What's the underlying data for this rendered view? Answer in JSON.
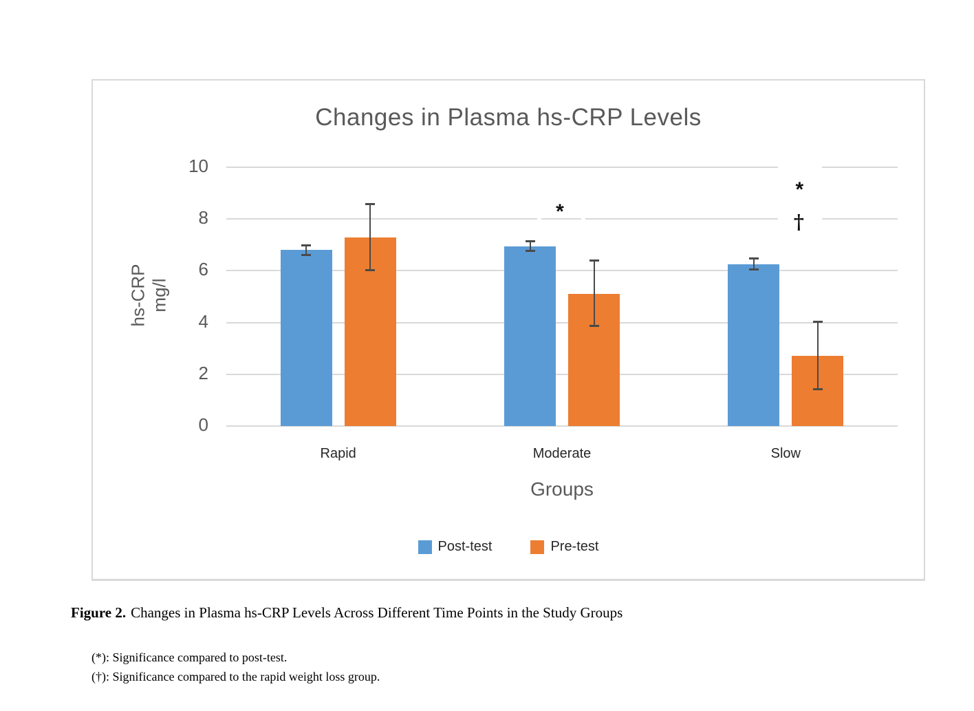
{
  "caption": {
    "label": "Figure 2.",
    "text": "Changes in Plasma hs-CRP Levels Across Different Time Points in the Study Groups"
  },
  "footnotes": [
    "(*): Significance compared to post-test.",
    "(†): Significance compared to the rapid weight loss group."
  ],
  "chart_data": {
    "type": "bar",
    "title": "Changes in Plasma hs-CRP Levels",
    "categories": [
      "Rapid",
      "Moderate",
      "Slow"
    ],
    "series": [
      {
        "name": "Post-test",
        "color": "#5B9BD5",
        "values": [
          6.8,
          6.95,
          6.25
        ],
        "error_low": [
          6.6,
          6.75,
          6.05
        ],
        "error_high": [
          7.0,
          7.15,
          6.5
        ]
      },
      {
        "name": "Pre-test",
        "color": "#ED7D31",
        "values": [
          7.3,
          5.1,
          2.7
        ],
        "error_low": [
          6.0,
          3.85,
          1.4
        ],
        "error_high": [
          8.6,
          6.4,
          4.05
        ]
      }
    ],
    "xlabel": "Groups",
    "ylabel": "hs-CRP mg/l",
    "ylabel_lines": [
      "hs-CRP",
      "mg/l"
    ],
    "ylim": [
      0,
      10
    ],
    "yticks": [
      0,
      2,
      4,
      6,
      8,
      10
    ],
    "grid": true,
    "legend_position": "bottom",
    "annotations": [
      {
        "category": "Moderate",
        "category_index": 1,
        "symbols": [
          {
            "text": "*",
            "y": 8.45,
            "x_offset": -3
          }
        ]
      },
      {
        "category": "Slow",
        "category_index": 2,
        "symbols": [
          {
            "text": "*",
            "y": 9.3,
            "x_offset": 20
          },
          {
            "text": "†",
            "y": 7.9,
            "x_offset": 19
          }
        ]
      }
    ],
    "error_bar_color": "#4a4a4a",
    "gridline_color": "#d9d9d9",
    "title_color": "#595959",
    "label_color": "#262626"
  }
}
